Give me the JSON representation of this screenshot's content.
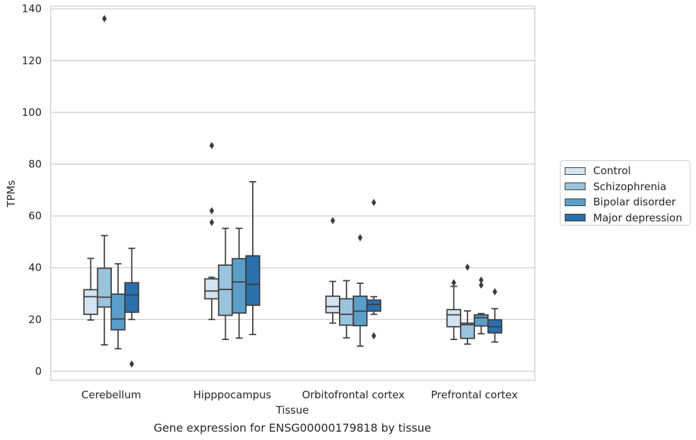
{
  "chart_data": {
    "type": "box",
    "title": "Gene expression for ENSG00000179818 by tissue",
    "xlabel": "Tissue",
    "ylabel": "TPMs",
    "ylim": [
      -3.5,
      141
    ],
    "yticks": [
      0,
      20,
      40,
      60,
      80,
      100,
      120,
      140
    ],
    "grid": "horizontal",
    "legend_position": "right",
    "categories": [
      "Cerebellum",
      "Hipppocampus",
      "Orbitofrontal cortex",
      "Prefrontal cortex"
    ],
    "series": [
      {
        "name": "Control",
        "color": "#d4e3f1",
        "boxes": [
          {
            "whislo": 19.8,
            "q1": 22.0,
            "med": 28.8,
            "q3": 31.5,
            "whishi": 43.6,
            "fliers": []
          },
          {
            "whislo": 20.0,
            "q1": 28.0,
            "med": 31.0,
            "q3": 35.7,
            "whishi": 36.3,
            "fliers": [
              57.5,
              62.0,
              87.2
            ]
          },
          {
            "whislo": 18.6,
            "q1": 22.6,
            "med": 25.0,
            "q3": 29.0,
            "whishi": 34.7,
            "fliers": [
              58.2
            ]
          },
          {
            "whislo": 12.3,
            "q1": 17.2,
            "med": 21.8,
            "q3": 23.8,
            "whishi": 32.8,
            "fliers": [
              34.2
            ]
          }
        ]
      },
      {
        "name": "Schizophrenia",
        "color": "#9ac3dd",
        "boxes": [
          {
            "whislo": 10.2,
            "q1": 24.8,
            "med": 28.6,
            "q3": 39.8,
            "whishi": 52.4,
            "fliers": [
              136.2
            ]
          },
          {
            "whislo": 12.3,
            "q1": 21.6,
            "med": 31.6,
            "q3": 41.0,
            "whishi": 55.2,
            "fliers": []
          },
          {
            "whislo": 12.9,
            "q1": 17.8,
            "med": 22.0,
            "q3": 28.0,
            "whishi": 35.0,
            "fliers": []
          },
          {
            "whislo": 10.5,
            "q1": 12.7,
            "med": 18.0,
            "q3": 18.6,
            "whishi": 23.3,
            "fliers": [
              40.2
            ]
          }
        ]
      },
      {
        "name": "Bipolar disorder",
        "color": "#5b9ec9",
        "boxes": [
          {
            "whislo": 8.7,
            "q1": 16.0,
            "med": 20.2,
            "q3": 29.8,
            "whishi": 41.5,
            "fliers": []
          },
          {
            "whislo": 12.8,
            "q1": 22.5,
            "med": 34.5,
            "q3": 43.5,
            "whishi": 55.2,
            "fliers": []
          },
          {
            "whislo": 9.7,
            "q1": 17.6,
            "med": 23.2,
            "q3": 29.0,
            "whishi": 34.0,
            "fliers": [
              51.6
            ]
          },
          {
            "whislo": 14.5,
            "q1": 17.5,
            "med": 20.7,
            "q3": 21.8,
            "whishi": 22.3,
            "fliers": [
              33.3,
              35.2
            ]
          }
        ]
      },
      {
        "name": "Major depression",
        "color": "#2b6fad",
        "boxes": [
          {
            "whislo": 20.0,
            "q1": 22.8,
            "med": 29.5,
            "q3": 34.2,
            "whishi": 47.5,
            "fliers": [
              2.8
            ]
          },
          {
            "whislo": 14.2,
            "q1": 25.5,
            "med": 33.6,
            "q3": 44.6,
            "whishi": 73.2,
            "fliers": []
          },
          {
            "whislo": 22.0,
            "q1": 23.2,
            "med": 25.8,
            "q3": 27.5,
            "whishi": 28.8,
            "fliers": [
              13.7,
              65.2
            ]
          },
          {
            "whislo": 11.3,
            "q1": 14.8,
            "med": 17.2,
            "q3": 19.9,
            "whishi": 24.2,
            "fliers": [
              30.7
            ]
          }
        ]
      }
    ]
  }
}
